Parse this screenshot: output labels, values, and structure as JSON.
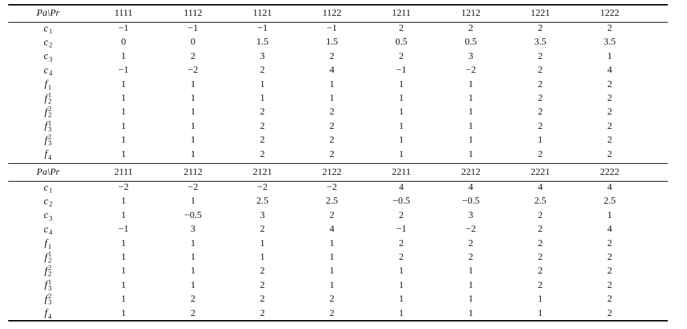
{
  "blocks": [
    {
      "header": {
        "corner": "Pa\\Pr",
        "columns": [
          "1111",
          "1112",
          "1121",
          "1122",
          "1211",
          "1212",
          "1221",
          "1222"
        ]
      },
      "rows": [
        {
          "label": {
            "base": "c",
            "sub": "1"
          },
          "cells": [
            "−1",
            "−1",
            "−1",
            "−1",
            "2",
            "2",
            "2",
            "2"
          ]
        },
        {
          "label": {
            "base": "c",
            "sub": "2"
          },
          "cells": [
            "0",
            "0",
            "1.5",
            "1.5",
            "0.5",
            "0.5",
            "3.5",
            "3.5"
          ]
        },
        {
          "label": {
            "base": "c",
            "sub": "3"
          },
          "cells": [
            "1",
            "2",
            "3",
            "2",
            "2",
            "3",
            "2",
            "1"
          ]
        },
        {
          "label": {
            "base": "c",
            "sub": "4"
          },
          "cells": [
            "−1",
            "−2",
            "2",
            "4",
            "−1",
            "−2",
            "2",
            "4"
          ]
        },
        {
          "label": {
            "base": "f",
            "sub": "1"
          },
          "cells": [
            "1",
            "1",
            "1",
            "1",
            "1",
            "1",
            "2",
            "2"
          ]
        },
        {
          "label": {
            "base": "f",
            "sub": "2",
            "sup": "1"
          },
          "cells": [
            "1",
            "1",
            "1",
            "1",
            "1",
            "1",
            "2",
            "2"
          ]
        },
        {
          "label": {
            "base": "f",
            "sub": "2",
            "sup": "2"
          },
          "cells": [
            "1",
            "1",
            "2",
            "2",
            "1",
            "1",
            "2",
            "2"
          ]
        },
        {
          "label": {
            "base": "f",
            "sub": "3",
            "sup": "1"
          },
          "cells": [
            "1",
            "1",
            "2",
            "2",
            "1",
            "1",
            "2",
            "2"
          ]
        },
        {
          "label": {
            "base": "f",
            "sub": "3",
            "sup": "2"
          },
          "cells": [
            "1",
            "1",
            "2",
            "2",
            "1",
            "1",
            "1",
            "2"
          ]
        },
        {
          "label": {
            "base": "f",
            "sub": "4"
          },
          "cells": [
            "1",
            "1",
            "2",
            "2",
            "1",
            "1",
            "2",
            "2"
          ]
        }
      ]
    },
    {
      "header": {
        "corner": "Pa\\Pr",
        "columns": [
          "2111",
          "2112",
          "2121",
          "2122",
          "2211",
          "2212",
          "2221",
          "2222"
        ]
      },
      "rows": [
        {
          "label": {
            "base": "c",
            "sub": "1"
          },
          "cells": [
            "−2",
            "−2",
            "−2",
            "−2",
            "4",
            "4",
            "4",
            "4"
          ]
        },
        {
          "label": {
            "base": "c",
            "sub": "2"
          },
          "cells": [
            "1",
            "1",
            "2.5",
            "2.5",
            "−0.5",
            "−0.5",
            "2.5",
            "2.5"
          ]
        },
        {
          "label": {
            "base": "c",
            "sub": "3"
          },
          "cells": [
            "1",
            "−0.5",
            "3",
            "2",
            "2",
            "3",
            "2",
            "1"
          ]
        },
        {
          "label": {
            "base": "c",
            "sub": "4"
          },
          "cells": [
            "−1",
            "3",
            "2",
            "4",
            "−1",
            "−2",
            "2",
            "4"
          ]
        },
        {
          "label": {
            "base": "f",
            "sub": "1"
          },
          "cells": [
            "1",
            "1",
            "1",
            "1",
            "2",
            "2",
            "2",
            "2"
          ]
        },
        {
          "label": {
            "base": "f",
            "sub": "2",
            "sup": "1"
          },
          "cells": [
            "1",
            "1",
            "1",
            "1",
            "2",
            "2",
            "2",
            "2"
          ]
        },
        {
          "label": {
            "base": "f",
            "sub": "2",
            "sup": "2"
          },
          "cells": [
            "1",
            "1",
            "2",
            "1",
            "1",
            "1",
            "2",
            "2"
          ]
        },
        {
          "label": {
            "base": "f",
            "sub": "3",
            "sup": "1"
          },
          "cells": [
            "1",
            "1",
            "2",
            "1",
            "1",
            "1",
            "2",
            "2"
          ]
        },
        {
          "label": {
            "base": "f",
            "sub": "3",
            "sup": "2"
          },
          "cells": [
            "1",
            "2",
            "2",
            "2",
            "1",
            "1",
            "1",
            "2"
          ]
        },
        {
          "label": {
            "base": "f",
            "sub": "4"
          },
          "cells": [
            "1",
            "2",
            "2",
            "2",
            "1",
            "1",
            "1",
            "2"
          ]
        }
      ]
    }
  ]
}
